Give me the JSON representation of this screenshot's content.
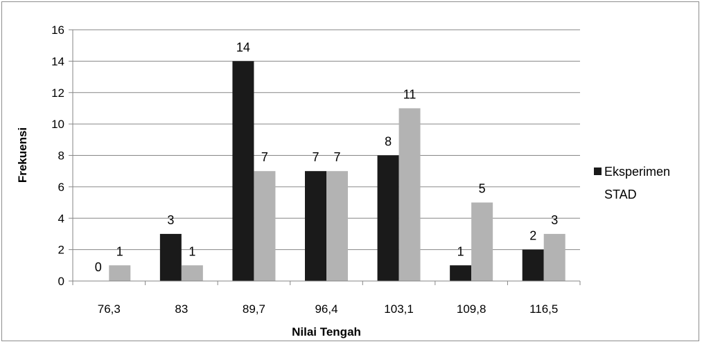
{
  "chart_data": {
    "type": "bar",
    "categories": [
      "76,3",
      "83",
      "89,7",
      "96,4",
      "103,1",
      "109,8",
      "116,5"
    ],
    "series": [
      {
        "name": "Eksperimen",
        "color": "#1a1a1a",
        "values": [
          0,
          3,
          14,
          7,
          8,
          1,
          2
        ]
      },
      {
        "name": "STAD",
        "color": "#b3b3b3",
        "values": [
          1,
          1,
          7,
          7,
          11,
          5,
          3
        ]
      }
    ],
    "xlabel": "Nilai Tengah",
    "ylabel": "Frekuensi",
    "ylim": [
      0,
      16
    ],
    "yticks": [
      0,
      2,
      4,
      6,
      8,
      10,
      12,
      14,
      16
    ],
    "grid": true,
    "legend": "right"
  }
}
